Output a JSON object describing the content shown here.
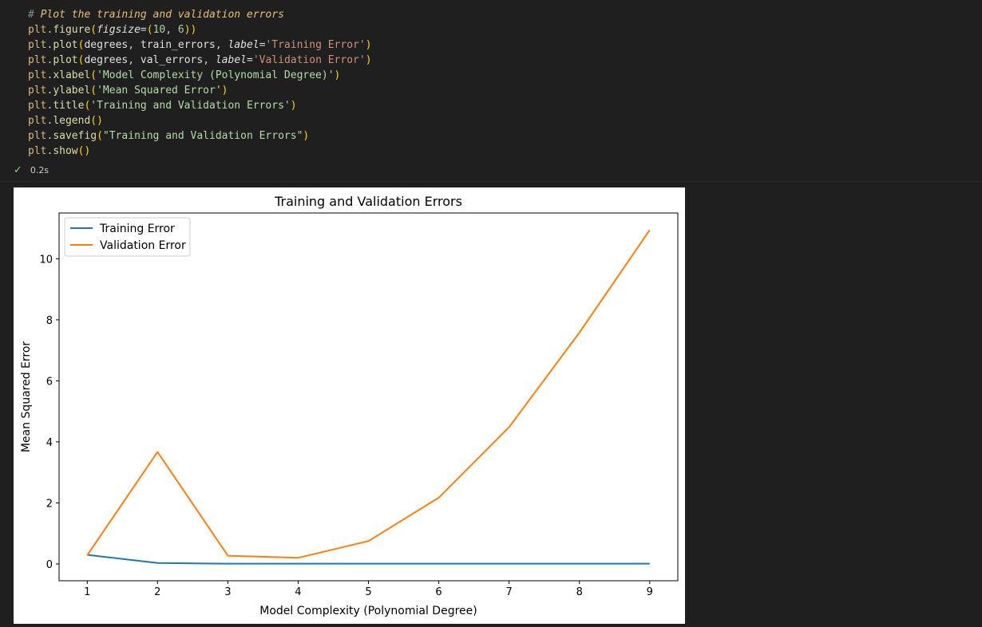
{
  "code_lines": [
    "# Plot the training and validation errors",
    "plt.figure(figsize=(10, 6))",
    "plt.plot(degrees, train_errors, label='Training Error')",
    "plt.plot(degrees, val_errors, label='Validation Error')",
    "plt.xlabel('Model Complexity (Polynomial Degree)')",
    "plt.ylabel('Mean Squared Error')",
    "plt.title('Training and Validation Errors')",
    "plt.legend()",
    "plt.savefig(\"Training and Validation Errors\")",
    "plt.show()"
  ],
  "status": {
    "icon": "check-icon",
    "duration": "0.2s",
    "color": "#89d185"
  },
  "chart_data": {
    "type": "line",
    "title": "Training and Validation Errors",
    "xlabel": "Model Complexity (Polynomial Degree)",
    "ylabel": "Mean Squared Error",
    "x": [
      1,
      2,
      3,
      4,
      5,
      6,
      7,
      8,
      9
    ],
    "xticks": [
      "1",
      "2",
      "3",
      "4",
      "5",
      "6",
      "7",
      "8",
      "9"
    ],
    "yticks": [
      "0",
      "2",
      "4",
      "6",
      "8",
      "10"
    ],
    "xlim": [
      0.6,
      9.4
    ],
    "ylim": [
      -0.55,
      11.5
    ],
    "legend": "top-left",
    "series": [
      {
        "name": "Training Error",
        "color": "#1f77b4",
        "values": [
          0.3,
          0.03,
          0.01,
          0.01,
          0.01,
          0.01,
          0.01,
          0.01,
          0.01
        ]
      },
      {
        "name": "Validation Error",
        "color": "#ff7f0e",
        "values": [
          0.28,
          3.67,
          0.27,
          0.2,
          0.75,
          2.17,
          4.48,
          7.58,
          10.94
        ]
      }
    ]
  }
}
